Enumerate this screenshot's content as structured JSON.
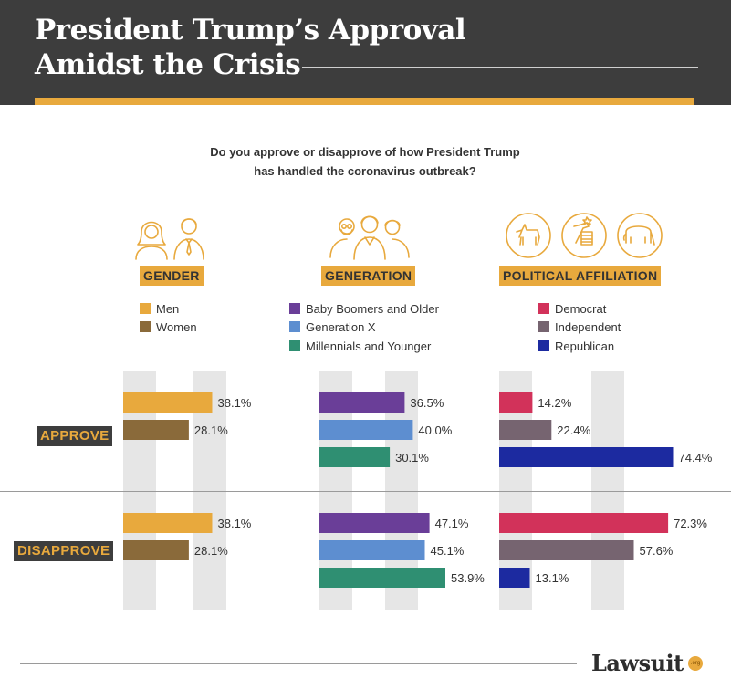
{
  "header": {
    "title_line1": "President Trump’s Approval",
    "title_line2": "Amidst the Crisis"
  },
  "question": {
    "line1": "Do you approve or disapprove of how President Trump",
    "line2": "has handled the coronavirus outbreak?"
  },
  "groups": [
    {
      "label": "GENDER",
      "legend": [
        {
          "name": "Men",
          "color": "#e8a93d"
        },
        {
          "name": "Women",
          "color": "#8a6a3a"
        }
      ]
    },
    {
      "label": "GENERATION",
      "legend": [
        {
          "name": "Baby Boomers and Older",
          "color": "#6a3e98"
        },
        {
          "name": "Generation X",
          "color": "#5d8ed0"
        },
        {
          "name": "Millennials and Younger",
          "color": "#2f8f72"
        }
      ]
    },
    {
      "label": "POLITICAL AFFILIATION",
      "legend": [
        {
          "name": "Democrat",
          "color": "#d2325a"
        },
        {
          "name": "Independent",
          "color": "#766470"
        },
        {
          "name": "Republican",
          "color": "#1c2aa0"
        }
      ]
    }
  ],
  "row_labels": {
    "approve": "APPROVE",
    "disapprove": "DISAPPROVE"
  },
  "chart_data": {
    "type": "bar",
    "orientation": "horizontal",
    "rows": [
      "APPROVE",
      "DISAPPROVE"
    ],
    "panels": [
      {
        "group": "GENDER",
        "series": [
          {
            "name": "Men",
            "color": "#e8a93d",
            "values": [
              38.1,
              38.1
            ],
            "labels": [
              "38.1%",
              "38.1%"
            ]
          },
          {
            "name": "Women",
            "color": "#8a6a3a",
            "values": [
              28.1,
              28.1
            ],
            "labels": [
              "28.1%",
              "28.1%"
            ]
          }
        ]
      },
      {
        "group": "GENERATION",
        "series": [
          {
            "name": "Baby Boomers and Older",
            "color": "#6a3e98",
            "values": [
              36.5,
              47.1
            ],
            "labels": [
              "36.5%",
              "47.1%"
            ]
          },
          {
            "name": "Generation X",
            "color": "#5d8ed0",
            "values": [
              40.0,
              45.1
            ],
            "labels": [
              "40.0%",
              "45.1%"
            ]
          },
          {
            "name": "Millennials and Younger",
            "color": "#2f8f72",
            "values": [
              30.1,
              53.9
            ],
            "labels": [
              "30.1%",
              "53.9%"
            ]
          }
        ]
      },
      {
        "group": "POLITICAL AFFILIATION",
        "series": [
          {
            "name": "Democrat",
            "color": "#d2325a",
            "values": [
              14.2,
              72.3
            ],
            "labels": [
              "14.2%",
              "72.3%"
            ]
          },
          {
            "name": "Independent",
            "color": "#766470",
            "values": [
              22.4,
              57.6
            ],
            "labels": [
              "22.4%",
              "57.6%"
            ]
          },
          {
            "name": "Republican",
            "color": "#1c2aa0",
            "values": [
              74.4,
              13.1
            ],
            "labels": [
              "74.4%",
              "13.1%"
            ]
          }
        ]
      }
    ],
    "xlim": [
      0,
      80
    ]
  },
  "footer": {
    "logo_text": "Lawsuit",
    "logo_badge": ".org"
  },
  "colors": {
    "accent": "#e8a93d",
    "header_bg": "#3d3d3d",
    "grid_band": "#e6e6e6"
  }
}
